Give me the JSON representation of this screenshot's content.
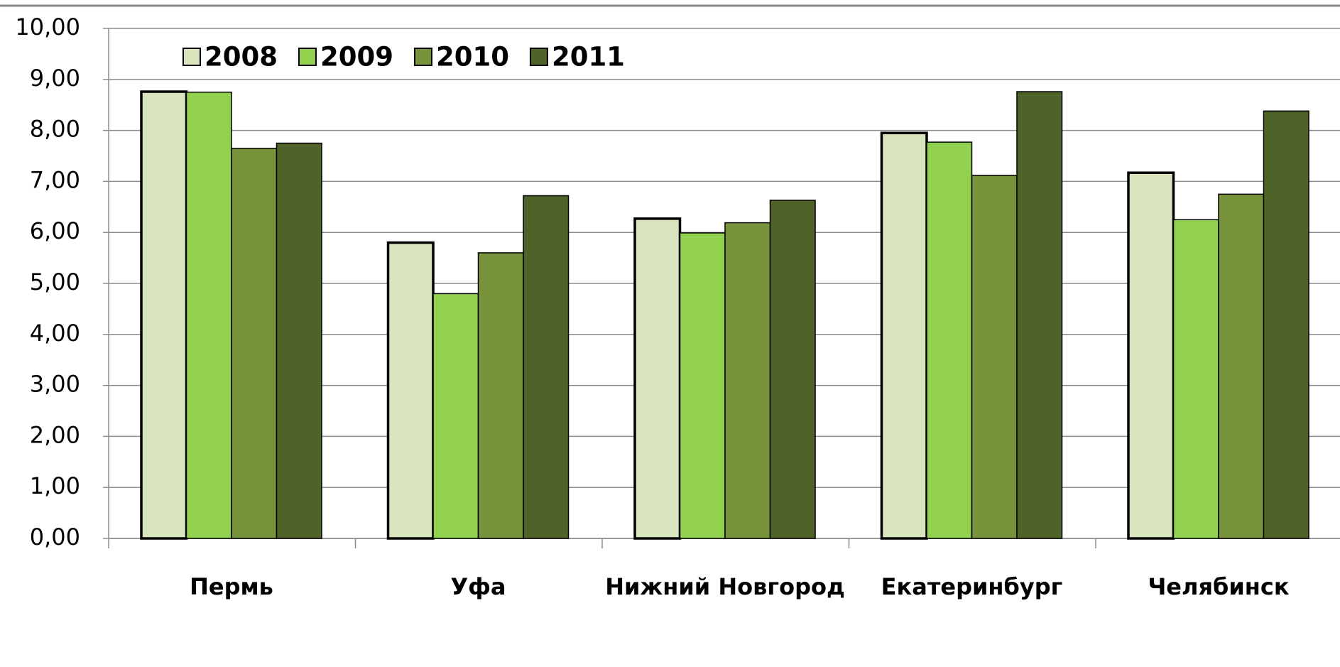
{
  "chart_data": {
    "type": "bar",
    "categories": [
      "Пермь",
      "Уфа",
      "Нижний Новгород",
      "Екатеринбург",
      "Челябинск"
    ],
    "series": [
      {
        "name": "2008",
        "color": "#d7e4bd",
        "values": [
          8.76,
          5.8,
          6.27,
          7.95,
          7.17
        ]
      },
      {
        "name": "2009",
        "color": "#92d050",
        "values": [
          8.75,
          4.8,
          5.99,
          7.77,
          6.25
        ]
      },
      {
        "name": "2010",
        "color": "#77933c",
        "values": [
          7.65,
          5.6,
          6.19,
          7.12,
          6.75
        ]
      },
      {
        "name": "2011",
        "color": "#4f6228",
        "values": [
          7.75,
          6.72,
          6.63,
          8.76,
          8.38
        ]
      }
    ],
    "ylim": [
      0,
      10
    ],
    "yticks": [
      {
        "value": 0,
        "label": "0,00"
      },
      {
        "value": 1,
        "label": "1,00"
      },
      {
        "value": 2,
        "label": "2,00"
      },
      {
        "value": 3,
        "label": "3,00"
      },
      {
        "value": 4,
        "label": "4,00"
      },
      {
        "value": 5,
        "label": "5,00"
      },
      {
        "value": 6,
        "label": "6,00"
      },
      {
        "value": 7,
        "label": "7,00"
      },
      {
        "value": 8,
        "label": "8,00"
      },
      {
        "value": 9,
        "label": "9,00"
      },
      {
        "value": 10,
        "label": "10,00"
      }
    ],
    "grid": true,
    "legend": "top-left"
  }
}
